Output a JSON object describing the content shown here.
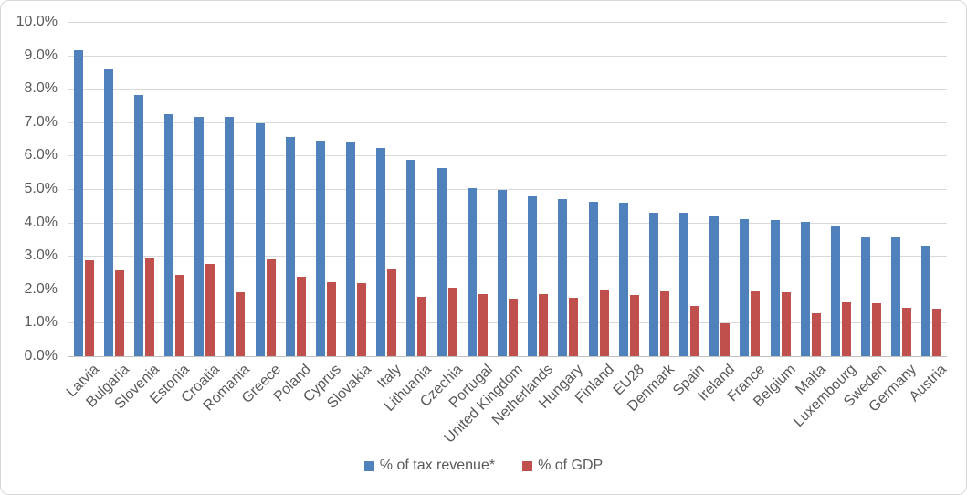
{
  "chart_data": {
    "type": "bar",
    "title": "",
    "xlabel": "",
    "ylabel": "",
    "ylim": [
      0,
      10
    ],
    "grid": true,
    "legend_position": "bottom",
    "ytick_labels": [
      "0.0%",
      "1.0%",
      "2.0%",
      "3.0%",
      "4.0%",
      "5.0%",
      "6.0%",
      "7.0%",
      "8.0%",
      "9.0%",
      "10.0%"
    ],
    "categories": [
      "Latvia",
      "Bulgaria",
      "Slovenia",
      "Estonia",
      "Croatia",
      "Romania",
      "Greece",
      "Poland",
      "Cyprus",
      "Slovakia",
      "Italy",
      "Lithuania",
      "Czechia",
      "Portugal",
      "United Kingdom",
      "Netherlands",
      "Hungary",
      "Finland",
      "EU28",
      "Denmark",
      "Spain",
      "Ireland",
      "France",
      "Belgium",
      "Malta",
      "Luxembourg",
      "Sweden",
      "Germany",
      "Austria"
    ],
    "series": [
      {
        "name": "% of tax revenue*",
        "color": "#4f81bd",
        "values": [
          9.14,
          8.58,
          7.82,
          7.25,
          7.16,
          7.15,
          6.98,
          6.57,
          6.46,
          6.41,
          6.24,
          5.87,
          5.63,
          5.02,
          4.97,
          4.77,
          4.7,
          4.61,
          4.6,
          4.3,
          4.29,
          4.21,
          4.1,
          4.08,
          4.01,
          3.89,
          3.58,
          3.57,
          3.3
        ]
      },
      {
        "name": "% of GDP",
        "color": "#c0504d",
        "values": [
          2.87,
          2.58,
          2.94,
          2.42,
          2.76,
          1.9,
          2.9,
          2.39,
          2.2,
          2.19,
          2.63,
          1.78,
          2.04,
          1.86,
          1.73,
          1.86,
          1.74,
          1.96,
          1.84,
          1.95,
          1.51,
          0.97,
          1.95,
          1.92,
          1.29,
          1.6,
          1.59,
          1.46,
          1.41
        ]
      }
    ],
    "colors": {
      "gridline": "#d9d9d9",
      "axis_line": "#bfbfbf",
      "text": "#595959"
    }
  }
}
